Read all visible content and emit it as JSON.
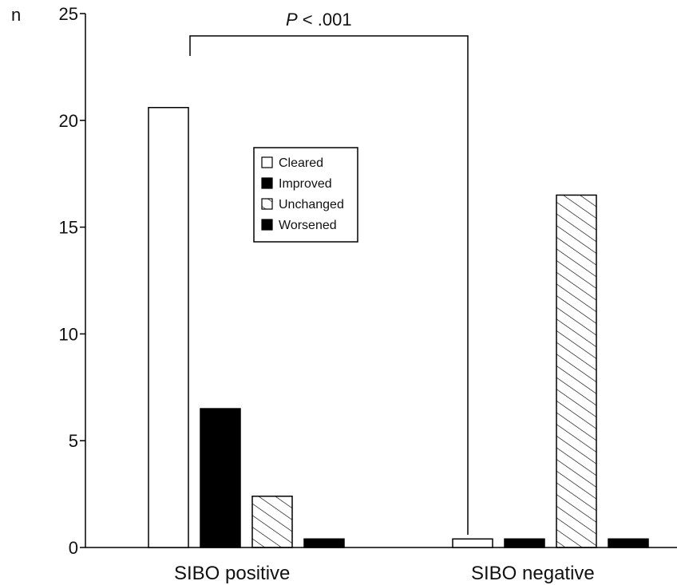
{
  "chart_data": {
    "type": "bar",
    "title": "",
    "ylabel": "n",
    "xlabel": "",
    "ylim": [
      0,
      25
    ],
    "yticks": [
      0,
      5,
      10,
      15,
      20,
      25
    ],
    "categories": [
      "SIBO positive",
      "SIBO negative"
    ],
    "series": [
      {
        "name": "Cleared",
        "values": [
          20.6,
          0.4
        ],
        "fill": "#ffffff"
      },
      {
        "name": "Improved",
        "values": [
          6.5,
          0.4
        ],
        "fill": "#000000"
      },
      {
        "name": "Unchanged",
        "values": [
          2.4,
          16.5
        ],
        "fill": "hatch"
      },
      {
        "name": "Worsened",
        "values": [
          0.4,
          0.4
        ],
        "fill": "#000000"
      }
    ],
    "legend": {
      "position": "top-center"
    },
    "annotation": {
      "text": "P < .001",
      "italic_part": "P"
    },
    "grid": false
  }
}
